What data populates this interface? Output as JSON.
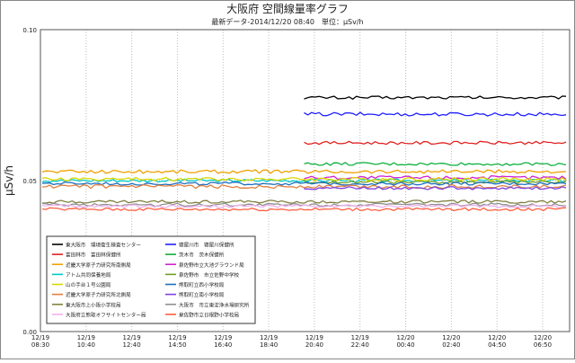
{
  "chart_data": {
    "type": "line",
    "title": "大阪府 空間線量率グラフ",
    "subtitle": "最新データ-2014/12/20 08:40　単位：μSv/h",
    "ylabel": "μSv/h",
    "xlabel": "",
    "ylim": [
      0.0,
      0.1
    ],
    "yticks": [
      "0.00",
      "0.05",
      "0.10"
    ],
    "xtick_labels": [
      {
        "date": "12/19",
        "time": "08:30"
      },
      {
        "date": "12/19",
        "time": "10:40"
      },
      {
        "date": "12/19",
        "time": "12:40"
      },
      {
        "date": "12/19",
        "time": "14:50"
      },
      {
        "date": "12/19",
        "time": "16:40"
      },
      {
        "date": "12/19",
        "time": "18:40"
      },
      {
        "date": "12/19",
        "time": "20:40"
      },
      {
        "date": "12/19",
        "time": "22:40"
      },
      {
        "date": "12/20",
        "time": "00:40"
      },
      {
        "date": "12/20",
        "time": "02:40"
      },
      {
        "date": "12/20",
        "time": "04:50"
      },
      {
        "date": "12/20",
        "time": "06:50"
      }
    ],
    "grid": true,
    "legend_position": "bottom-left",
    "series": [
      {
        "name": "東大阪市　環境衛生検査センター",
        "color": "#000000",
        "start": 0.5,
        "level": 0.0775,
        "noise": 0.0005
      },
      {
        "name": "寝屋川市　寝屋川保健所",
        "color": "#2020ff",
        "start": 0.5,
        "level": 0.072,
        "noise": 0.0006
      },
      {
        "name": "富田林市　富田林保健所",
        "color": "#e02020",
        "start": 0.5,
        "level": 0.0625,
        "noise": 0.0005
      },
      {
        "name": "茨木市　茨木保健所",
        "color": "#10b040",
        "start": 0.5,
        "level": 0.0555,
        "noise": 0.0005
      },
      {
        "name": "近畿大学原子力研究所南側局",
        "color": "#f0a000",
        "start": 0.0,
        "level": 0.053,
        "noise": 0.0006
      },
      {
        "name": "泉佐野市立大池グラウンド局",
        "color": "#d020d0",
        "start": 0.5,
        "level": 0.051,
        "noise": 0.0006
      },
      {
        "name": "アトム共同保養地局",
        "color": "#00c8c8",
        "start": 0.0,
        "level": 0.05,
        "noise": 0.0005
      },
      {
        "name": "泉佐野市　市立佐野中学校",
        "color": "#70a020",
        "start": 0.5,
        "level": 0.0495,
        "noise": 0.0005
      },
      {
        "name": "山の手台１号公園局",
        "color": "#d8d800",
        "start": 0.0,
        "level": 0.0505,
        "noise": 0.0006
      },
      {
        "name": "熊取町立西小学校局",
        "color": "#1c6ec0",
        "start": 0.0,
        "level": 0.049,
        "noise": 0.0005
      },
      {
        "name": "近畿大学原子力研究所北側局",
        "color": "#e08040",
        "start": 0.0,
        "level": 0.048,
        "noise": 0.0006
      },
      {
        "name": "熊取町立南小学校局",
        "color": "#8040e0",
        "start": 0.5,
        "level": 0.0475,
        "noise": 0.0005
      },
      {
        "name": "東大阪市上小阪小学校局",
        "color": "#808040",
        "start": 0.0,
        "level": 0.043,
        "noise": 0.0005
      },
      {
        "name": "大阪市　市立東淀浄水場研究所",
        "color": "#909090",
        "start": 0.0,
        "level": 0.042,
        "noise": 0.0005
      },
      {
        "name": "大阪府立熊取オフサイトセンター局",
        "color": "#f0b0f0",
        "start": 0.0,
        "level": 0.0415,
        "noise": 0.0005
      },
      {
        "name": "泉佐野市立日根野小学校局",
        "color": "#ff6040",
        "start": 0.0,
        "level": 0.0405,
        "noise": 0.0005
      }
    ]
  }
}
